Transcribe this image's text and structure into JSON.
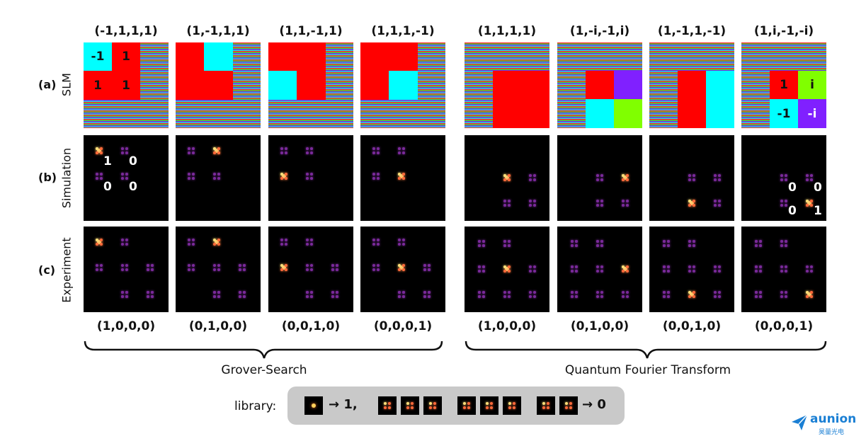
{
  "columns": [
    {
      "top": "(-1,1,1,1)",
      "bottom": "(1,0,0,0)"
    },
    {
      "top": "(1,-1,1,1)",
      "bottom": "(0,1,0,0)"
    },
    {
      "top": "(1,1,-1,1)",
      "bottom": "(0,0,1,0)"
    },
    {
      "top": "(1,1,1,-1)",
      "bottom": "(0,0,0,1)"
    },
    {
      "top": "(1,1,1,1)",
      "bottom": "(1,0,0,0)"
    },
    {
      "top": "(1,-i,-1,i)",
      "bottom": "(0,1,0,0)"
    },
    {
      "top": "(1,-1,1,-1)",
      "bottom": "(0,0,1,0)"
    },
    {
      "top": "(1,i,-1,-i)",
      "bottom": "(0,0,0,1)"
    }
  ],
  "rows": [
    {
      "tag": "(a)",
      "name": "SLM"
    },
    {
      "tag": "(b)",
      "name": "Simulation"
    },
    {
      "tag": "(c)",
      "name": "Experiment"
    }
  ],
  "slm_labels": {
    "first": [
      "-1",
      "1",
      "1",
      "1"
    ],
    "last": [
      "1",
      "i",
      "-1",
      "-i"
    ]
  },
  "sim_labels": {
    "first": [
      "1",
      "0",
      "0",
      "0"
    ],
    "last": [
      "0",
      "0",
      "0",
      "1"
    ]
  },
  "groups": {
    "left": "Grover-Search",
    "right": "Quantum Fourier Transform"
  },
  "library": {
    "label": "library:",
    "one": "→ 1,",
    "zero": "→ 0"
  },
  "logo": {
    "name": "aunion",
    "sub": "昊量光电",
    "color": "#1a7fd4"
  },
  "colors": {
    "red": "#ff0000",
    "cyan": "#00ffff",
    "green": "#80ff00",
    "purple": "#8020ff"
  }
}
